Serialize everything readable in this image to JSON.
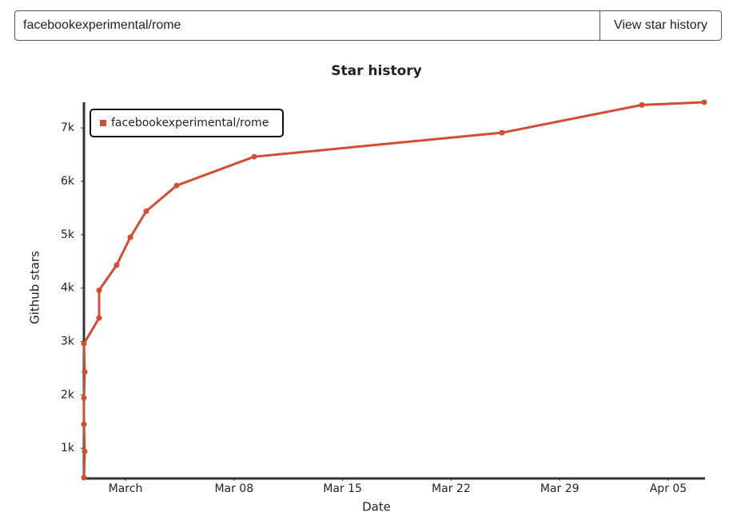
{
  "search": {
    "input": "facebookexperimental/rome",
    "button": "View star history"
  },
  "chart_data": {
    "type": "line",
    "title": "Star history",
    "xlabel": "Date",
    "ylabel": "Github stars",
    "x": [
      -1.68,
      -1.63,
      -1.68,
      -1.68,
      -1.63,
      -1.68,
      -0.7,
      -0.7,
      0.43,
      1.31,
      2.34,
      4.3,
      9.3,
      25.28,
      34.3,
      38.32
    ],
    "series": [
      {
        "name": "facebookexperimental/rome",
        "color": "#d24d33",
        "values": [
          450,
          940,
          1450,
          1940,
          2430,
          2960,
          3440,
          3960,
          4430,
          4950,
          5440,
          5920,
          6460,
          6910,
          7430,
          7480
        ]
      }
    ],
    "xlim": [
      -1.68,
      38.32
    ],
    "xticks": [
      {
        "value": 1,
        "label": "March"
      },
      {
        "value": 8,
        "label": "Mar 08"
      },
      {
        "value": 15,
        "label": "Mar 15"
      },
      {
        "value": 22,
        "label": "Mar 22"
      },
      {
        "value": 29,
        "label": "Mar 29"
      },
      {
        "value": 36,
        "label": "Apr 05"
      }
    ],
    "ylim": [
      450,
      7480
    ],
    "yticks": [
      {
        "value": 1000,
        "label": "1k"
      },
      {
        "value": 2000,
        "label": "2k"
      },
      {
        "value": 3000,
        "label": "3k"
      },
      {
        "value": 4000,
        "label": "4k"
      },
      {
        "value": 5000,
        "label": "5k"
      },
      {
        "value": 6000,
        "label": "6k"
      },
      {
        "value": 7000,
        "label": "7k"
      }
    ],
    "legend": "top-left"
  }
}
